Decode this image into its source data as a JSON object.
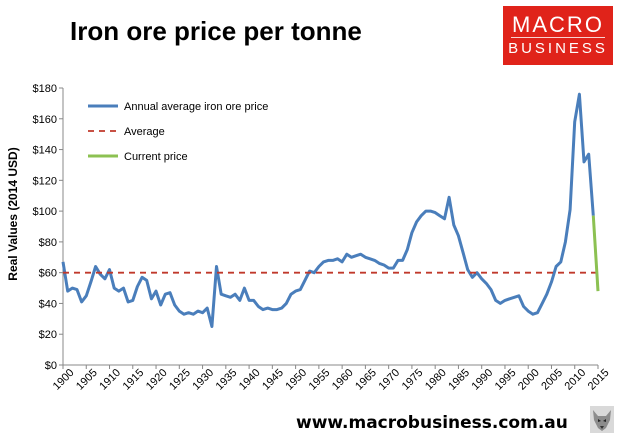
{
  "title": "Iron ore price per tonne",
  "logo": {
    "line1": "MACRO",
    "line2": "BUSINESS"
  },
  "url": "www.macrobusiness.com.au",
  "colors": {
    "logo_bg": "#e0231a",
    "series": "#4a7ebb",
    "average": "#c0392b",
    "current": "#8cc152"
  },
  "chart_data": {
    "type": "line",
    "ylabel": "Real Values (2014 USD)",
    "ylim": [
      0,
      180
    ],
    "yticks": [
      0,
      20,
      40,
      60,
      80,
      100,
      120,
      140,
      160,
      180
    ],
    "ytick_labels": [
      "$0",
      "$20",
      "$40",
      "$60",
      "$80",
      "$100",
      "$120",
      "$140",
      "$160",
      "$180"
    ],
    "xlim": [
      1900,
      2015
    ],
    "xticks": [
      1900,
      1905,
      1910,
      1915,
      1920,
      1925,
      1930,
      1935,
      1940,
      1945,
      1950,
      1955,
      1960,
      1965,
      1970,
      1975,
      1980,
      1985,
      1990,
      1995,
      2000,
      2005,
      2010,
      2015
    ],
    "legend": "top-left",
    "grid": false,
    "series": [
      {
        "name": "Annual average iron ore price",
        "style": "solid",
        "x": [
          1900,
          1901,
          1902,
          1903,
          1904,
          1905,
          1906,
          1907,
          1908,
          1909,
          1910,
          1911,
          1912,
          1913,
          1914,
          1915,
          1916,
          1917,
          1918,
          1919,
          1920,
          1921,
          1922,
          1923,
          1924,
          1925,
          1926,
          1927,
          1928,
          1929,
          1930,
          1931,
          1932,
          1933,
          1934,
          1935,
          1936,
          1937,
          1938,
          1939,
          1940,
          1941,
          1942,
          1943,
          1944,
          1945,
          1946,
          1947,
          1948,
          1949,
          1950,
          1951,
          1952,
          1953,
          1954,
          1955,
          1956,
          1957,
          1958,
          1959,
          1960,
          1961,
          1962,
          1963,
          1964,
          1965,
          1966,
          1967,
          1968,
          1969,
          1970,
          1971,
          1972,
          1973,
          1974,
          1975,
          1976,
          1977,
          1978,
          1979,
          1980,
          1981,
          1982,
          1983,
          1984,
          1985,
          1986,
          1987,
          1988,
          1989,
          1990,
          1991,
          1992,
          1993,
          1994,
          1995,
          1996,
          1997,
          1998,
          1999,
          2000,
          2001,
          2002,
          2003,
          2004,
          2005,
          2006,
          2007,
          2008,
          2009,
          2010,
          2011,
          2012,
          2013,
          2014
        ],
        "values": [
          67,
          48,
          50,
          49,
          41,
          45,
          54,
          64,
          59,
          56,
          62,
          50,
          48,
          50,
          41,
          42,
          51,
          57,
          55,
          43,
          48,
          39,
          46,
          47,
          39,
          35,
          33,
          34,
          33,
          35,
          34,
          37,
          25,
          64,
          46,
          45,
          44,
          46,
          42,
          50,
          42,
          42,
          38,
          36,
          37,
          36,
          36,
          37,
          40,
          46,
          48,
          49,
          55,
          61,
          60,
          64,
          67,
          68,
          68,
          69,
          67,
          72,
          70,
          71,
          72,
          70,
          69,
          68,
          66,
          65,
          63,
          63,
          68,
          68,
          75,
          86,
          93,
          97,
          100,
          100,
          99,
          97,
          95,
          109,
          91,
          84,
          73,
          62,
          57,
          60,
          56,
          53,
          49,
          42,
          40,
          42,
          43,
          44,
          45,
          38,
          35,
          33,
          34,
          40,
          46,
          54,
          64,
          67,
          80,
          101,
          158,
          176,
          132,
          137,
          97
        ]
      },
      {
        "name": "Average",
        "style": "dashed",
        "x": [
          1900,
          2015
        ],
        "values": [
          60,
          60
        ]
      },
      {
        "name": "Current price",
        "style": "solid",
        "x": [
          2014,
          2015
        ],
        "values": [
          97,
          48
        ]
      }
    ]
  }
}
